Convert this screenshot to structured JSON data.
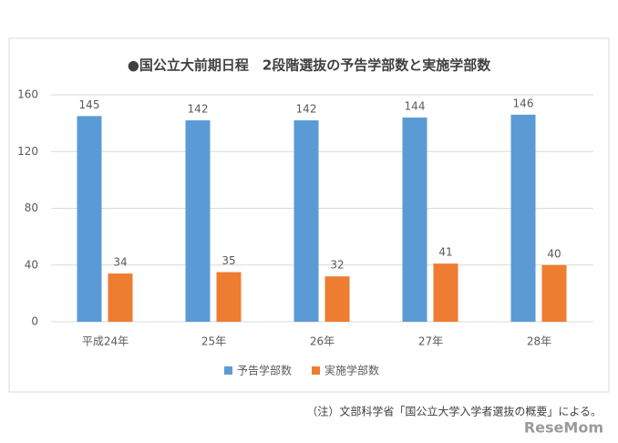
{
  "chart_data": {
    "type": "bar",
    "title": "●国公立大前期日程　2段階選抜の予告学部数と実施学部数",
    "categories": [
      "平成24年",
      "25年",
      "26年",
      "27年",
      "28年"
    ],
    "series": [
      {
        "name": "予告学部数",
        "color": "#5b9bd5",
        "values": [
          145,
          142,
          142,
          144,
          146
        ]
      },
      {
        "name": "実施学部数",
        "color": "#ed7d31",
        "values": [
          34,
          35,
          32,
          41,
          40
        ]
      }
    ],
    "ylim": [
      0,
      160
    ],
    "yticks": [
      0,
      40,
      80,
      120,
      160
    ],
    "grid": true,
    "legend": "bottom",
    "note": "（注）文部科学省「国公立大学入学者選抜の概要」による。",
    "watermark": "ReseMom"
  }
}
